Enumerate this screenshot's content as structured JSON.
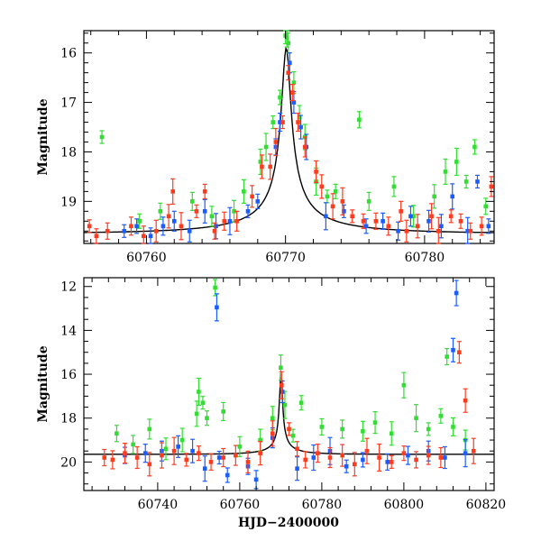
{
  "colors": {
    "green": "#33dd33",
    "blue": "#1a5cff",
    "red": "#ff3b1f",
    "model": "#000000"
  },
  "chart_data": [
    {
      "type": "scatter",
      "title": "",
      "xlabel": "",
      "ylabel": "Magnitude",
      "xlim": [
        60755.5,
        60785
      ],
      "ylim": [
        19.85,
        15.55
      ],
      "y_inverted": true,
      "xticks": [
        60760,
        60770,
        60780
      ],
      "xtick_labels": [
        "60760",
        "60770",
        "60780"
      ],
      "yticks": [
        16,
        17,
        18,
        19
      ],
      "ytick_labels": [
        "16",
        "17",
        "18",
        "19"
      ],
      "model_curve": {
        "t0": 60770.05,
        "peak_mag": 15.9,
        "base_mag": 19.65,
        "tE": 11.0,
        "u0": 0.03
      },
      "series": [
        {
          "color": "green",
          "points": [
            [
              60756.8,
              17.7
            ],
            [
              60759.5,
              19.4
            ],
            [
              60761.0,
              19.2
            ],
            [
              60763.3,
              19.0
            ],
            [
              60764.7,
              19.3
            ],
            [
              60766.3,
              19.2
            ],
            [
              60767.0,
              18.8
            ],
            [
              60768.2,
              18.2
            ],
            [
              60768.6,
              17.9
            ],
            [
              60769.1,
              17.4
            ],
            [
              60769.6,
              16.9
            ],
            [
              60770.0,
              15.65
            ],
            [
              60770.1,
              15.7
            ],
            [
              60770.2,
              15.8
            ],
            [
              60770.6,
              16.6
            ],
            [
              60771.0,
              17.3
            ],
            [
              60771.4,
              17.7
            ],
            [
              60772.2,
              18.6
            ],
            [
              60773.0,
              18.9
            ],
            [
              60773.6,
              18.8
            ],
            [
              60775.3,
              17.35
            ],
            [
              60776.0,
              19.0
            ],
            [
              60777.8,
              18.7
            ],
            [
              60779.2,
              19.3
            ],
            [
              60780.7,
              18.9
            ],
            [
              60781.5,
              18.4
            ],
            [
              60782.3,
              18.2
            ],
            [
              60783.0,
              18.6
            ],
            [
              60783.6,
              17.9
            ],
            [
              60784.4,
              19.1
            ]
          ]
        },
        {
          "color": "blue",
          "points": [
            [
              60758.4,
              19.6
            ],
            [
              60759.3,
              19.5
            ],
            [
              60760.3,
              19.7
            ],
            [
              60761.2,
              19.5
            ],
            [
              60762.0,
              19.4
            ],
            [
              60763.1,
              19.6
            ],
            [
              60764.2,
              19.2
            ],
            [
              60765.0,
              19.5
            ],
            [
              60766.0,
              19.4
            ],
            [
              60767.3,
              19.2
            ],
            [
              60768.0,
              19.0
            ],
            [
              60769.3,
              17.9
            ],
            [
              60769.6,
              17.4
            ],
            [
              60770.3,
              16.2
            ],
            [
              60770.6,
              17.0
            ],
            [
              60771.1,
              17.5
            ],
            [
              60771.5,
              17.9
            ],
            [
              60772.9,
              19.3
            ],
            [
              60774.2,
              19.2
            ],
            [
              60775.8,
              19.5
            ],
            [
              60777.0,
              19.4
            ],
            [
              60778.1,
              19.6
            ],
            [
              60779.0,
              19.3
            ],
            [
              60780.3,
              19.4
            ],
            [
              60781.2,
              19.5
            ],
            [
              60782.0,
              18.9
            ],
            [
              60783.1,
              19.6
            ],
            [
              60783.8,
              18.6
            ],
            [
              60784.6,
              19.5
            ]
          ]
        },
        {
          "color": "red",
          "points": [
            [
              60755.9,
              19.5
            ],
            [
              60756.4,
              19.7
            ],
            [
              60757.2,
              19.6
            ],
            [
              60758.9,
              19.5
            ],
            [
              60759.8,
              19.7
            ],
            [
              60760.7,
              19.6
            ],
            [
              60761.6,
              19.3
            ],
            [
              60761.9,
              18.8
            ],
            [
              60762.5,
              19.5
            ],
            [
              60763.6,
              19.2
            ],
            [
              60764.2,
              18.8
            ],
            [
              60764.9,
              19.6
            ],
            [
              60765.6,
              19.4
            ],
            [
              60766.5,
              19.4
            ],
            [
              60767.6,
              18.9
            ],
            [
              60768.3,
              18.3
            ],
            [
              60768.9,
              18.3
            ],
            [
              60769.3,
              17.8
            ],
            [
              60769.8,
              17.4
            ],
            [
              60770.2,
              16.4
            ],
            [
              60770.5,
              16.8
            ],
            [
              60770.9,
              17.4
            ],
            [
              60771.4,
              17.9
            ],
            [
              60772.2,
              18.4
            ],
            [
              60772.6,
              18.7
            ],
            [
              60773.4,
              19.1
            ],
            [
              60774.1,
              19.0
            ],
            [
              60774.8,
              19.3
            ],
            [
              60775.6,
              19.4
            ],
            [
              60776.5,
              19.4
            ],
            [
              60777.4,
              19.5
            ],
            [
              60778.3,
              19.2
            ],
            [
              60778.7,
              19.6
            ],
            [
              60779.5,
              19.5
            ],
            [
              60780.5,
              19.3
            ],
            [
              60781.0,
              19.6
            ],
            [
              60781.9,
              19.3
            ],
            [
              60782.6,
              19.4
            ],
            [
              60783.3,
              19.6
            ],
            [
              60784.1,
              19.5
            ],
            [
              60784.8,
              18.7
            ]
          ]
        }
      ]
    },
    {
      "type": "scatter",
      "title": "",
      "xlabel": "HJD−2400000",
      "ylabel": "Magnitude",
      "xlim": [
        60722,
        60822
      ],
      "ylim": [
        21.3,
        11.6
      ],
      "y_inverted": true,
      "xticks": [
        60740,
        60760,
        60780,
        60800,
        60820
      ],
      "xtick_labels": [
        "60740",
        "60760",
        "60780",
        "60800",
        "60820"
      ],
      "yticks": [
        12,
        14,
        16,
        18,
        20
      ],
      "ytick_labels": [
        "12",
        "14",
        "16",
        "18",
        "20"
      ],
      "model_curve": {
        "t0": 60770.05,
        "peak_mag": 15.9,
        "base_mag": 19.65,
        "tE": 11.0,
        "u0": 0.03
      },
      "series": [
        {
          "color": "green",
          "points": [
            [
              60730.0,
              18.7
            ],
            [
              60734.0,
              19.2
            ],
            [
              60738.0,
              18.5
            ],
            [
              60742.0,
              19.4
            ],
            [
              60746.0,
              19.0
            ],
            [
              60749.5,
              17.8
            ],
            [
              60750.0,
              16.8
            ],
            [
              60751.0,
              17.3
            ],
            [
              60752.0,
              18.0
            ],
            [
              60754.0,
              12.05
            ],
            [
              60756.0,
              17.7
            ],
            [
              60760.0,
              19.3
            ],
            [
              60765.0,
              19.0
            ],
            [
              60768.0,
              18.0
            ],
            [
              60770.0,
              15.7
            ],
            [
              60771.0,
              17.4
            ],
            [
              60773.0,
              18.8
            ],
            [
              60775.0,
              17.3
            ],
            [
              60780.0,
              18.4
            ],
            [
              60785.0,
              18.5
            ],
            [
              60790.0,
              18.6
            ],
            [
              60793.0,
              18.2
            ],
            [
              60797.0,
              18.7
            ],
            [
              60800.0,
              16.5
            ],
            [
              60803.0,
              18.0
            ],
            [
              60806.0,
              18.5
            ],
            [
              60809.0,
              17.9
            ],
            [
              60810.5,
              15.2
            ],
            [
              60812.0,
              18.4
            ],
            [
              60815.0,
              19.0
            ]
          ]
        },
        {
          "color": "blue",
          "points": [
            [
              60732.0,
              19.7
            ],
            [
              60737.0,
              19.6
            ],
            [
              60741.0,
              19.5
            ],
            [
              60745.0,
              19.3
            ],
            [
              60748.5,
              19.5
            ],
            [
              60751.5,
              20.3
            ],
            [
              60754.4,
              12.95
            ],
            [
              60755.0,
              19.8
            ],
            [
              60757.0,
              20.6
            ],
            [
              60762.0,
              20.2
            ],
            [
              60764.0,
              20.8
            ],
            [
              60768.0,
              18.9
            ],
            [
              60770.4,
              16.8
            ],
            [
              60774.0,
              20.3
            ],
            [
              60778.0,
              19.8
            ],
            [
              60782.0,
              19.5
            ],
            [
              60786.0,
              20.2
            ],
            [
              60790.0,
              19.9
            ],
            [
              60796.0,
              20.0
            ],
            [
              60801.0,
              19.7
            ],
            [
              60806.0,
              19.5
            ],
            [
              60810.0,
              19.8
            ],
            [
              60812.0,
              14.9
            ],
            [
              60812.8,
              12.3
            ],
            [
              60815.0,
              19.6
            ]
          ]
        },
        {
          "color": "red",
          "points": [
            [
              60727.0,
              19.8
            ],
            [
              60729.0,
              19.9
            ],
            [
              60732.0,
              19.6
            ],
            [
              60735.0,
              19.8
            ],
            [
              60738.0,
              20.1
            ],
            [
              60741.0,
              19.7
            ],
            [
              60744.0,
              19.5
            ],
            [
              60747.0,
              19.9
            ],
            [
              60750.0,
              19.6
            ],
            [
              60753.0,
              20.0
            ],
            [
              60756.0,
              19.8
            ],
            [
              60759.0,
              19.7
            ],
            [
              60762.0,
              20.0
            ],
            [
              60765.0,
              19.6
            ],
            [
              60768.0,
              18.7
            ],
            [
              60770.2,
              16.5
            ],
            [
              60772.0,
              18.5
            ],
            [
              60774.0,
              19.4
            ],
            [
              60776.0,
              19.9
            ],
            [
              60779.0,
              19.6
            ],
            [
              60782.0,
              19.8
            ],
            [
              60785.0,
              19.7
            ],
            [
              60788.0,
              20.1
            ],
            [
              60791.0,
              19.5
            ],
            [
              60794.0,
              19.8
            ],
            [
              60797.0,
              20.0
            ],
            [
              60800.0,
              19.6
            ],
            [
              60803.0,
              19.9
            ],
            [
              60806.0,
              19.7
            ],
            [
              60809.0,
              19.8
            ],
            [
              60813.5,
              15.0
            ],
            [
              60815.0,
              17.2
            ],
            [
              60817.0,
              19.5
            ]
          ]
        }
      ]
    }
  ]
}
